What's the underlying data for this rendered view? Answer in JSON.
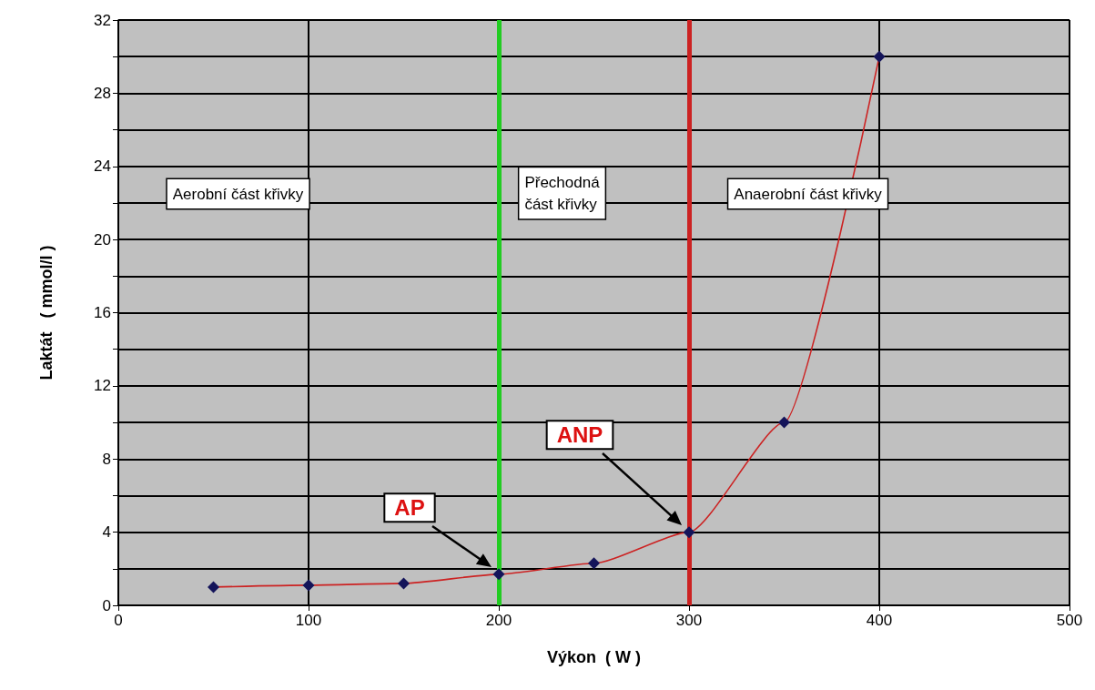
{
  "chart_data": {
    "type": "line",
    "xlabel": "Výkon  ( W )",
    "ylabel": "Laktát   ( mmol/l )",
    "x": [
      50,
      100,
      150,
      200,
      250,
      300,
      350,
      400
    ],
    "series": [
      {
        "color": "#cc2222",
        "colors": [
          "#14145a",
          "#14145a",
          "#14145a",
          "#14145a",
          "#14145a",
          "#14145a",
          "#14145a",
          "#14145a"
        ],
        "values": [
          1.0,
          1.1,
          1.2,
          1.7,
          2.3,
          4.0,
          10,
          30
        ]
      }
    ],
    "xlim": [
      0,
      500
    ],
    "xticks": [
      0,
      100,
      200,
      300,
      400,
      500
    ],
    "ylim": [
      0,
      32
    ],
    "yticks": [
      0,
      {
        "value": 2,
        "label": null
      },
      4,
      {
        "value": 6,
        "label": null
      },
      8,
      {
        "value": 10,
        "label": null
      },
      12,
      {
        "value": 14,
        "label": null
      },
      16,
      {
        "value": 18,
        "label": null
      },
      20,
      {
        "value": 22,
        "label": null
      },
      24,
      {
        "value": 26,
        "label": null
      },
      28,
      {
        "value": 30,
        "label": null
      },
      32
    ],
    "grid": true,
    "marker": "diamond",
    "line_style": "solid",
    "ref_lines": [
      {
        "axis": "x",
        "value": 200,
        "color": "#22cc22"
      },
      {
        "axis": "x",
        "value": 300,
        "color": "#cc2222"
      }
    ],
    "annotations": [
      "Aerobní část křivky",
      "Přechodná\nčást křivky",
      "Anaerobní část křivky",
      "AP",
      "ANP"
    ]
  }
}
